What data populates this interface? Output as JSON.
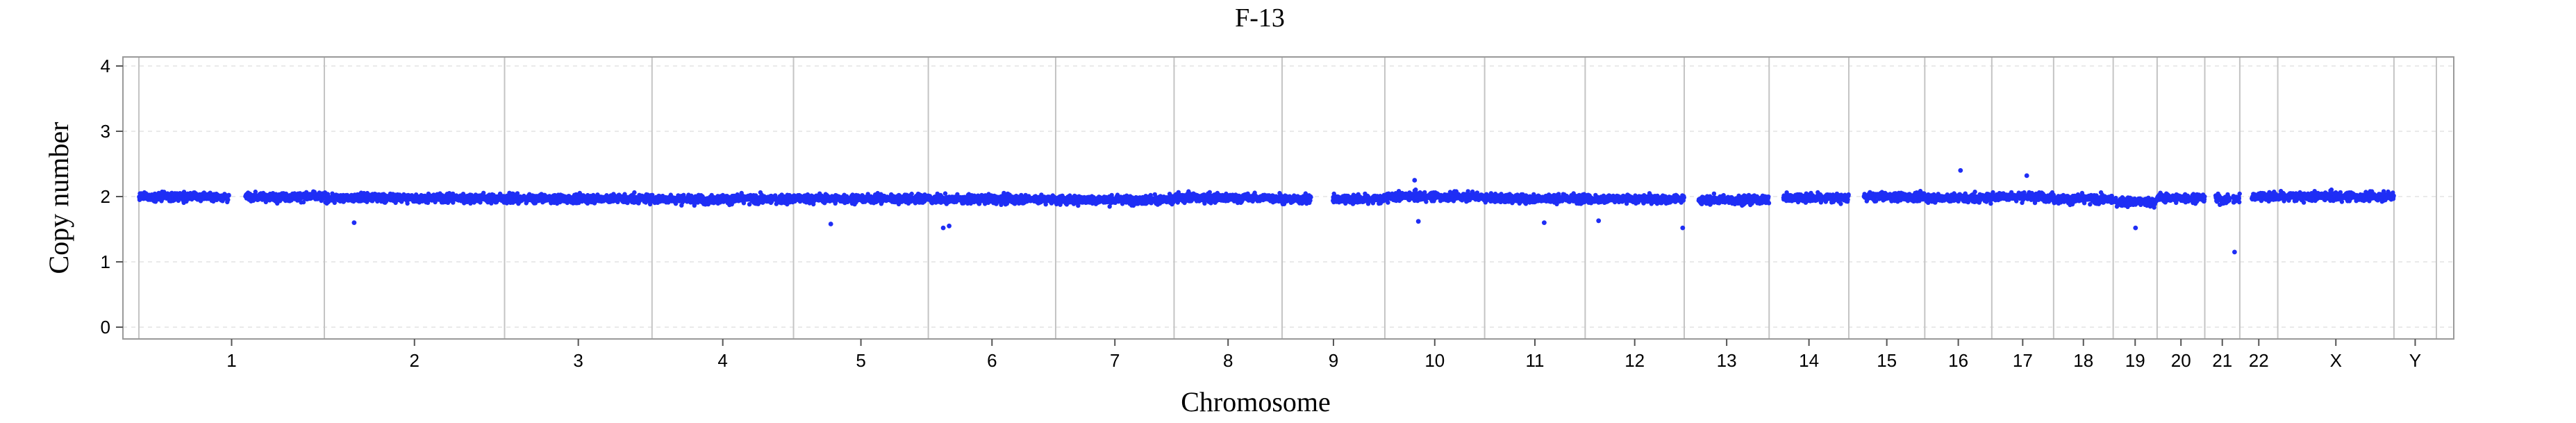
{
  "chart_data": {
    "type": "scatter",
    "title": "F-13",
    "xlabel": "Chromosome",
    "ylabel": "Copy number",
    "ylim": [
      0,
      4
    ],
    "yticks": [
      "0",
      "1",
      "2",
      "3",
      "4"
    ],
    "grid": true,
    "legend": "none",
    "point_color": "#1f2ef5",
    "chromosomes": [
      "1",
      "2",
      "3",
      "4",
      "5",
      "6",
      "7",
      "8",
      "9",
      "10",
      "11",
      "12",
      "13",
      "14",
      "15",
      "16",
      "17",
      "18",
      "19",
      "20",
      "21",
      "22",
      "X",
      "Y"
    ],
    "chromosome_lengths_mb": [
      249,
      242,
      198,
      190,
      181,
      171,
      159,
      145,
      138,
      134,
      135,
      133,
      114,
      107,
      102,
      90,
      83,
      80,
      59,
      64,
      47,
      51,
      156,
      57
    ],
    "baseline_copy_number": [
      2.0,
      1.98,
      1.97,
      1.96,
      1.97,
      1.96,
      1.95,
      1.98,
      1.96,
      2.0,
      1.97,
      1.96,
      1.95,
      1.98,
      2.0,
      1.98,
      2.0,
      1.96,
      1.92,
      1.98,
      1.96,
      2.0,
      2.0,
      null
    ],
    "gaps_mb": [
      {
        "chromosome": "1",
        "start": 121,
        "end": 143
      },
      {
        "chromosome": "9",
        "start": 39,
        "end": 68
      },
      {
        "chromosome": "13",
        "start": 0,
        "end": 19
      },
      {
        "chromosome": "14",
        "start": 0,
        "end": 19
      },
      {
        "chromosome": "15",
        "start": 0,
        "end": 20
      },
      {
        "chromosome": "21",
        "start": 0,
        "end": 14
      },
      {
        "chromosome": "21",
        "start": 34,
        "end": 38
      },
      {
        "chromosome": "22",
        "start": 0,
        "end": 16
      }
    ],
    "outliers": [
      {
        "chromosome": "16",
        "position_mb": 48,
        "copy_number": 2.4
      },
      {
        "chromosome": "17",
        "position_mb": 47,
        "copy_number": 2.32
      },
      {
        "chromosome": "10",
        "position_mb": 40,
        "copy_number": 2.25
      },
      {
        "chromosome": "6",
        "position_mb": 20,
        "copy_number": 1.52
      },
      {
        "chromosome": "6",
        "position_mb": 28,
        "copy_number": 1.55
      },
      {
        "chromosome": "5",
        "position_mb": 50,
        "copy_number": 1.58
      },
      {
        "chromosome": "12",
        "position_mb": 18,
        "copy_number": 1.63
      },
      {
        "chromosome": "2",
        "position_mb": 40,
        "copy_number": 1.6
      },
      {
        "chromosome": "19",
        "position_mb": 30,
        "copy_number": 1.52
      },
      {
        "chromosome": "12",
        "position_mb": 131,
        "copy_number": 1.52
      },
      {
        "chromosome": "11",
        "position_mb": 80,
        "copy_number": 1.6
      },
      {
        "chromosome": "10",
        "position_mb": 45,
        "copy_number": 1.62
      },
      {
        "chromosome": "21",
        "position_mb": 40,
        "copy_number": 1.15
      }
    ]
  }
}
